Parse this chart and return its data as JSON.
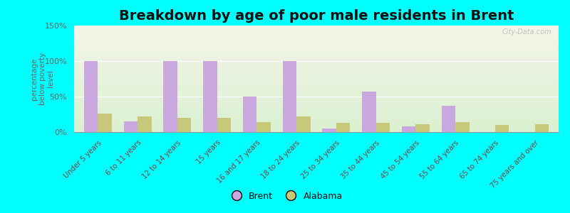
{
  "title": "Breakdown by age of poor male residents in Brent",
  "ylabel": "percentage\nbelow poverty\nlevel",
  "categories": [
    "Under 5 years",
    "6 to 11 years",
    "12 to 14 years",
    "15 years",
    "16 and 17 years",
    "18 to 24 years",
    "25 to 34 years",
    "35 to 44 years",
    "45 to 54 years",
    "55 to 64 years",
    "65 to 74 years",
    "75 years and over"
  ],
  "brent_values": [
    100,
    15,
    100,
    100,
    50,
    100,
    5,
    57,
    8,
    37,
    0,
    0
  ],
  "alabama_values": [
    26,
    22,
    20,
    20,
    14,
    22,
    13,
    13,
    11,
    14,
    10,
    11
  ],
  "brent_color": "#c9a8e0",
  "alabama_color": "#c8c87a",
  "background_color": "#00ffff",
  "ylim": [
    0,
    150
  ],
  "yticks": [
    0,
    50,
    100,
    150
  ],
  "ytick_labels": [
    "0%",
    "50%",
    "100%",
    "150%"
  ],
  "legend_brent": "Brent",
  "legend_alabama": "Alabama",
  "title_fontsize": 14,
  "bar_width": 0.35,
  "watermark": "City-Data.com"
}
